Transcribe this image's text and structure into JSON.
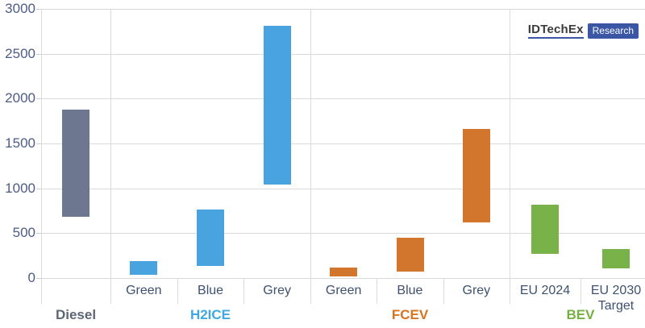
{
  "logo": {
    "brand": "IDTechEx",
    "badge": "Research",
    "brand_color": "#3b3b3b",
    "badge_bg": "#3a56a5"
  },
  "chart_data": {
    "type": "bar",
    "subtype": "floating-range-bars",
    "title": "",
    "xlabel": "",
    "ylabel": "",
    "ylim": [
      0,
      3000
    ],
    "ytick_interval": 500,
    "yticks": [
      0,
      500,
      1000,
      1500,
      2000,
      2500,
      3000
    ],
    "grid": true,
    "legend": "none",
    "colors": {
      "gridline": "#dadada",
      "axis_text": "#4d5b88",
      "category_text": "#3e5170"
    },
    "groups": [
      {
        "label": "Diesel",
        "label_color": "#5d6676",
        "bar_color": "#6d7890",
        "bars": [
          {
            "label": "",
            "low": 680,
            "high": 1875
          }
        ]
      },
      {
        "label": "H2ICE",
        "label_color": "#3fa8e3",
        "bar_color": "#49a3de",
        "bars": [
          {
            "label": "Green",
            "low": 30,
            "high": 185
          },
          {
            "label": "Blue",
            "low": 130,
            "high": 760
          },
          {
            "label": "Grey",
            "low": 1040,
            "high": 2815
          }
        ]
      },
      {
        "label": "FCEV",
        "label_color": "#d8731f",
        "bar_color": "#d1762c",
        "bars": [
          {
            "label": "Green",
            "low": 15,
            "high": 115
          },
          {
            "label": "Blue",
            "low": 70,
            "high": 450
          },
          {
            "label": "Grey",
            "low": 620,
            "high": 1660
          }
        ]
      },
      {
        "label": "BEV",
        "label_color": "#75b043",
        "bar_color": "#7ab24a",
        "bars": [
          {
            "label": "EU 2024",
            "low": 265,
            "high": 815
          },
          {
            "label": "EU 2030\nTarget",
            "low": 100,
            "high": 320
          }
        ]
      }
    ]
  }
}
